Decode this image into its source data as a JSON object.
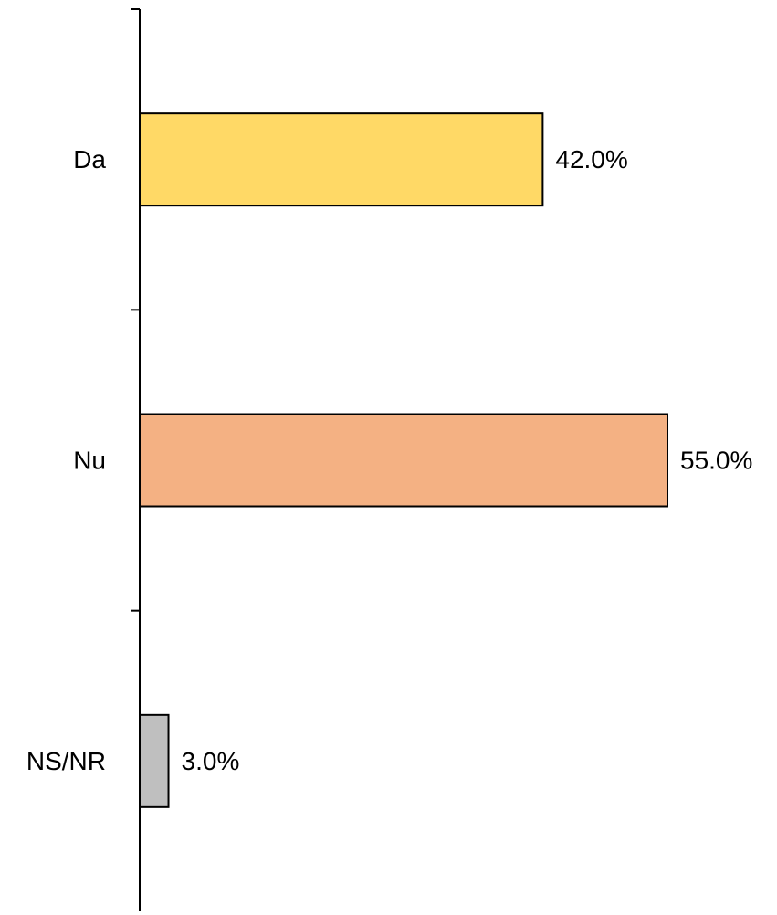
{
  "chart_data": {
    "type": "bar",
    "orientation": "horizontal",
    "categories": [
      "Da",
      "Nu",
      "NS/NR"
    ],
    "values": [
      42.0,
      55.0,
      3.0
    ],
    "value_labels": [
      "42.0%",
      "55.0%",
      "3.0%"
    ],
    "colors": [
      "#FFD966",
      "#F4B183",
      "#BFBFBF"
    ],
    "xlim": [
      0,
      60
    ],
    "grid": false,
    "legend": "none",
    "title": "",
    "xlabel": "",
    "ylabel": ""
  }
}
